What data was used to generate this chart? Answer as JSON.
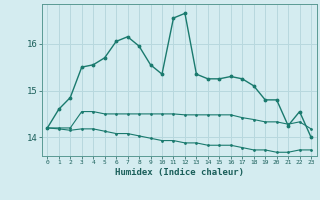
{
  "xlabel": "Humidex (Indice chaleur)",
  "background_color": "#d4ecf0",
  "grid_color": "#b8d8de",
  "line_color": "#1a7a6e",
  "xlim": [
    -0.5,
    23.5
  ],
  "ylim": [
    13.6,
    16.85
  ],
  "yticks": [
    14,
    15,
    16
  ],
  "xticks": [
    0,
    1,
    2,
    3,
    4,
    5,
    6,
    7,
    8,
    9,
    10,
    11,
    12,
    13,
    14,
    15,
    16,
    17,
    18,
    19,
    20,
    21,
    22,
    23
  ],
  "series1_x": [
    0,
    1,
    2,
    3,
    4,
    5,
    6,
    7,
    8,
    9,
    10,
    11,
    12,
    13,
    14,
    15,
    16,
    17,
    18,
    19,
    20,
    21,
    22,
    23
  ],
  "series1_y": [
    14.2,
    14.6,
    14.85,
    15.5,
    15.55,
    15.7,
    16.05,
    16.15,
    15.95,
    15.55,
    15.35,
    16.55,
    16.65,
    15.35,
    15.25,
    15.25,
    15.3,
    15.25,
    15.1,
    14.8,
    14.8,
    14.25,
    14.55,
    14.0
  ],
  "series2_x": [
    0,
    1,
    2,
    3,
    4,
    5,
    6,
    7,
    8,
    9,
    10,
    11,
    12,
    13,
    14,
    15,
    16,
    17,
    18,
    19,
    20,
    21,
    22,
    23
  ],
  "series2_y": [
    14.2,
    14.2,
    14.2,
    14.55,
    14.55,
    14.5,
    14.5,
    14.5,
    14.5,
    14.5,
    14.5,
    14.5,
    14.48,
    14.48,
    14.48,
    14.48,
    14.48,
    14.42,
    14.38,
    14.33,
    14.33,
    14.28,
    14.33,
    14.18
  ],
  "series3_x": [
    0,
    1,
    2,
    3,
    4,
    5,
    6,
    7,
    8,
    9,
    10,
    11,
    12,
    13,
    14,
    15,
    16,
    17,
    18,
    19,
    20,
    21,
    22,
    23
  ],
  "series3_y": [
    14.2,
    14.18,
    14.15,
    14.18,
    14.18,
    14.13,
    14.08,
    14.08,
    14.03,
    13.98,
    13.93,
    13.93,
    13.88,
    13.88,
    13.83,
    13.83,
    13.83,
    13.78,
    13.73,
    13.73,
    13.68,
    13.68,
    13.73,
    13.73
  ]
}
